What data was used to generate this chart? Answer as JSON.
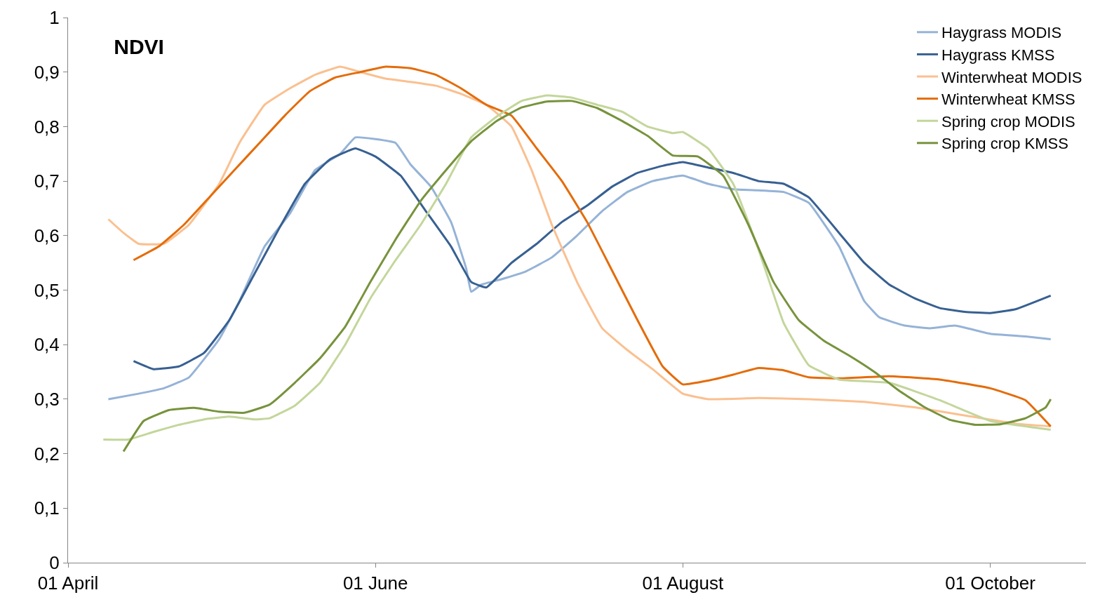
{
  "chart_data": {
    "type": "line",
    "title": "NDVI",
    "legend": "top right",
    "line_style": "solid",
    "xlim": [
      "--04-01",
      "--10-20"
    ],
    "xticks": [
      {
        "value": "--04-01",
        "label": "01 April"
      },
      {
        "value": "--06-01",
        "label": "01 June"
      },
      {
        "value": "--08-01",
        "label": "01 August"
      },
      {
        "value": "--10-01",
        "label": "01 October"
      }
    ],
    "ylim": [
      0,
      1
    ],
    "yticks": [
      0,
      {
        "value": 0.1,
        "label": "0,1"
      },
      {
        "value": 0.2,
        "label": "0,2"
      },
      {
        "value": 0.3,
        "label": "0,3"
      },
      {
        "value": 0.4,
        "label": "0,4"
      },
      {
        "value": 0.5,
        "label": "0,5"
      },
      {
        "value": 0.6,
        "label": "0,6"
      },
      {
        "value": 0.7,
        "label": "0,7"
      },
      {
        "value": 0.8,
        "label": "0,8"
      },
      {
        "value": 0.9,
        "label": "0,9"
      },
      1
    ],
    "series": [
      {
        "name": "Haygrass MODIS",
        "color": "#95b3d7",
        "x": [
          "--04-09",
          "--04-15",
          "--04-20",
          "--04-25",
          "--05-01",
          "--05-05",
          "--05-10",
          "--05-15",
          "--05-20",
          "--05-25",
          "--05-28",
          "--06-01",
          "--06-05",
          "--06-08",
          "--06-12",
          "--06-16",
          "--06-19",
          "--06-20",
          "--06-22",
          "--06-26",
          "--07-01",
          "--07-06",
          "--07-11",
          "--07-16",
          "--07-21",
          "--07-26",
          "--08-01",
          "--08-06",
          "--08-11",
          "--08-16",
          "--08-21",
          "--08-26",
          "--09-01",
          "--09-06",
          "--09-09",
          "--09-14",
          "--09-19",
          "--09-24",
          "--10-01",
          "--10-08",
          "--10-13"
        ],
        "values": [
          0.3,
          0.31,
          0.32,
          0.34,
          0.41,
          0.48,
          0.58,
          0.64,
          0.72,
          0.75,
          0.78,
          0.777,
          0.77,
          0.73,
          0.69,
          0.625,
          0.54,
          0.497,
          0.51,
          0.52,
          0.535,
          0.56,
          0.6,
          0.645,
          0.68,
          0.7,
          0.71,
          0.695,
          0.685,
          0.683,
          0.68,
          0.66,
          0.58,
          0.48,
          0.45,
          0.435,
          0.43,
          0.435,
          0.42,
          0.415,
          0.41
        ]
      },
      {
        "name": "Haygrass KMSS",
        "color": "#376092",
        "x": [
          "--04-14",
          "--04-18",
          "--04-23",
          "--04-28",
          "--05-03",
          "--05-08",
          "--05-13",
          "--05-18",
          "--05-23",
          "--05-28",
          "--06-01",
          "--06-06",
          "--06-11",
          "--06-16",
          "--06-20",
          "--06-23",
          "--06-28",
          "--07-03",
          "--07-08",
          "--07-13",
          "--07-18",
          "--07-23",
          "--07-28",
          "--08-01",
          "--08-06",
          "--08-11",
          "--08-16",
          "--08-21",
          "--08-26",
          "--09-01",
          "--09-06",
          "--09-11",
          "--09-16",
          "--09-21",
          "--09-26",
          "--10-01",
          "--10-06",
          "--10-13"
        ],
        "values": [
          0.37,
          0.355,
          0.36,
          0.385,
          0.445,
          0.53,
          0.615,
          0.695,
          0.74,
          0.76,
          0.745,
          0.71,
          0.645,
          0.58,
          0.515,
          0.505,
          0.55,
          0.585,
          0.625,
          0.655,
          0.69,
          0.715,
          0.728,
          0.735,
          0.725,
          0.715,
          0.7,
          0.695,
          0.67,
          0.605,
          0.55,
          0.51,
          0.485,
          0.467,
          0.46,
          0.458,
          0.465,
          0.49
        ]
      },
      {
        "name": "Winterwheat MODIS",
        "color": "#fac090",
        "x": [
          "--04-09",
          "--04-12",
          "--04-15",
          "--04-20",
          "--04-25",
          "--05-01",
          "--05-05",
          "--05-10",
          "--05-15",
          "--05-20",
          "--05-25",
          "--05-29",
          "--06-03",
          "--06-08",
          "--06-13",
          "--06-18",
          "--06-23",
          "--06-28",
          "--07-02",
          "--07-06",
          "--07-11",
          "--07-16",
          "--07-21",
          "--07-26",
          "--08-01",
          "--08-06",
          "--08-16",
          "--08-26",
          "--09-06",
          "--09-16",
          "--09-26",
          "--10-06",
          "--10-13"
        ],
        "values": [
          0.63,
          0.605,
          0.585,
          0.585,
          0.62,
          0.695,
          0.77,
          0.84,
          0.87,
          0.895,
          0.91,
          0.9,
          0.888,
          0.882,
          0.875,
          0.86,
          0.84,
          0.8,
          0.72,
          0.62,
          0.515,
          0.43,
          0.39,
          0.355,
          0.31,
          0.3,
          0.302,
          0.3,
          0.295,
          0.285,
          0.27,
          0.255,
          0.25
        ]
      },
      {
        "name": "Winterwheat KMSS",
        "color": "#e46c0a",
        "x": [
          "--04-14",
          "--04-19",
          "--04-24",
          "--04-29",
          "--05-04",
          "--05-09",
          "--05-14",
          "--05-19",
          "--05-24",
          "--05-29",
          "--06-03",
          "--06-08",
          "--06-13",
          "--06-18",
          "--06-23",
          "--06-28",
          "--07-03",
          "--07-08",
          "--07-13",
          "--07-18",
          "--07-23",
          "--07-28",
          "--08-01",
          "--08-06",
          "--08-11",
          "--08-16",
          "--08-21",
          "--08-26",
          "--09-01",
          "--09-11",
          "--09-21",
          "--10-01",
          "--10-08",
          "--10-13"
        ],
        "values": [
          0.555,
          0.58,
          0.62,
          0.67,
          0.72,
          0.77,
          0.82,
          0.865,
          0.89,
          0.9,
          0.91,
          0.907,
          0.895,
          0.87,
          0.84,
          0.82,
          0.76,
          0.7,
          0.625,
          0.535,
          0.445,
          0.36,
          0.327,
          0.334,
          0.345,
          0.357,
          0.353,
          0.34,
          0.338,
          0.342,
          0.336,
          0.32,
          0.298,
          0.25
        ]
      },
      {
        "name": "Spring crop MODIS",
        "color": "#c3d69b",
        "x": [
          "--04-08",
          "--04-13",
          "--04-18",
          "--04-23",
          "--04-28",
          "--05-03",
          "--05-08",
          "--05-11",
          "--05-16",
          "--05-21",
          "--05-26",
          "--05-31",
          "--06-05",
          "--06-10",
          "--06-15",
          "--06-20",
          "--06-25",
          "--06-30",
          "--07-05",
          "--07-10",
          "--07-15",
          "--07-20",
          "--07-25",
          "--07-30",
          "--08-01",
          "--08-06",
          "--08-11",
          "--08-16",
          "--08-21",
          "--08-26",
          "--09-01",
          "--09-11",
          "--09-21",
          "--10-01",
          "--10-13"
        ],
        "values": [
          0.226,
          0.226,
          0.24,
          0.253,
          0.263,
          0.268,
          0.263,
          0.265,
          0.288,
          0.33,
          0.4,
          0.485,
          0.555,
          0.62,
          0.695,
          0.78,
          0.818,
          0.847,
          0.857,
          0.853,
          0.84,
          0.827,
          0.8,
          0.788,
          0.79,
          0.76,
          0.695,
          0.575,
          0.44,
          0.362,
          0.336,
          0.33,
          0.298,
          0.26,
          0.244
        ]
      },
      {
        "name": "Spring crop KMSS",
        "color": "#77933c",
        "x": [
          "--04-12",
          "--04-16",
          "--04-21",
          "--04-26",
          "--05-01",
          "--05-06",
          "--05-11",
          "--05-16",
          "--05-21",
          "--05-26",
          "--05-31",
          "--06-05",
          "--06-10",
          "--06-15",
          "--06-20",
          "--06-25",
          "--06-30",
          "--07-05",
          "--07-10",
          "--07-15",
          "--07-20",
          "--07-25",
          "--07-30",
          "--08-04",
          "--08-09",
          "--08-14",
          "--08-19",
          "--08-24",
          "--08-29",
          "--09-03",
          "--09-08",
          "--09-13",
          "--09-18",
          "--09-23",
          "--09-28",
          "--10-03",
          "--10-08",
          "--10-12",
          "--10-13"
        ],
        "values": [
          0.204,
          0.26,
          0.28,
          0.284,
          0.277,
          0.275,
          0.29,
          0.33,
          0.375,
          0.433,
          0.515,
          0.593,
          0.664,
          0.72,
          0.773,
          0.81,
          0.835,
          0.846,
          0.847,
          0.834,
          0.81,
          0.783,
          0.747,
          0.745,
          0.71,
          0.62,
          0.515,
          0.445,
          0.407,
          0.38,
          0.35,
          0.315,
          0.285,
          0.262,
          0.253,
          0.254,
          0.265,
          0.285,
          0.3
        ]
      }
    ]
  }
}
